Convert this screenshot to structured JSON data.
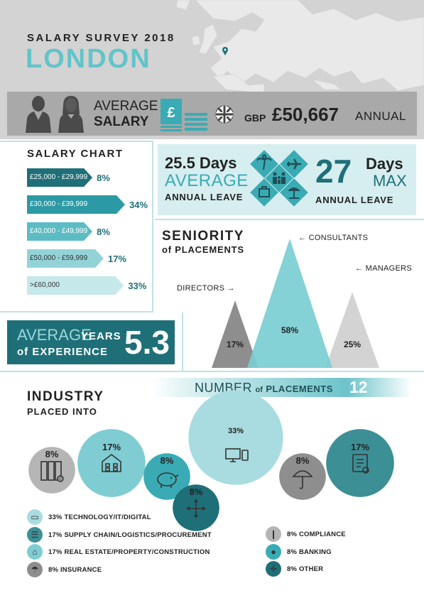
{
  "header": {
    "survey_title": "SALARY SURVEY 2018",
    "city": "LONDON",
    "average_label_1": "AVERAGE",
    "average_label_2": "SALARY",
    "currency": "GBP",
    "salary_value": "£50,667",
    "annual": "ANNUAL"
  },
  "salary_chart": {
    "title": "SALARY CHART",
    "bars": [
      {
        "range": "£25,000 - £29,999",
        "pct": "8%",
        "value": 8,
        "color": "#1f6f78"
      },
      {
        "range": "£30,000 - £39,999",
        "pct": "34%",
        "value": 34,
        "color": "#2c9aa4"
      },
      {
        "range": "£40,000 - £49,999",
        "pct": "8%",
        "value": 8,
        "color": "#5cbcc4"
      },
      {
        "range": "£50,000 - £59,999",
        "pct": "17%",
        "value": 17,
        "color": "#93d3d8"
      },
      {
        "range": ">£60,000",
        "pct": "33%",
        "value": 33,
        "color": "#c5e8eb"
      }
    ]
  },
  "leave": {
    "avg_days": "25.5 Days",
    "avg_label": "AVERAGE",
    "avg_sub": "ANNUAL LEAVE",
    "max_num": "27",
    "max_days": "Days",
    "max_label": "MAX",
    "max_sub": "ANNUAL LEAVE",
    "icons": [
      "palm-tree-icon",
      "airplane-icon",
      "suitcase-icon",
      "family-icon",
      "beach-umbrella-icon"
    ]
  },
  "seniority": {
    "title_1": "SENIORITY",
    "title_2": "of PLACEMENTS",
    "categories": [
      {
        "label": "DIRECTORS",
        "pct": "17%",
        "value": 17,
        "color": "#8e8e8e"
      },
      {
        "label": "CONSULTANTS",
        "pct": "58%",
        "value": 58,
        "color": "#79cdd3"
      },
      {
        "label": "MANAGERS",
        "pct": "25%",
        "value": 25,
        "color": "#d3d3d3"
      }
    ]
  },
  "experience": {
    "average": "AVERAGE",
    "years": "YEARS",
    "of_experience": "of EXPERIENCE",
    "value": "5.3"
  },
  "industry": {
    "title_1": "INDUSTRY",
    "title_2": "PLACED INTO",
    "number_label_1": "NUMBER",
    "number_label_2": "of",
    "number_label_3": "PLACEMENTS",
    "number_value": "12",
    "sectors": [
      {
        "name": "TECHNOLOGY/IT/DIGITAL",
        "pct": "33%",
        "value": 33,
        "color": "#a9dce0",
        "icon": "computer-icon"
      },
      {
        "name": "SUPPLY CHAIN/LOGISTICS/PROCUREMENT",
        "pct": "17%",
        "value": 17,
        "color": "#3d8f96",
        "icon": "clipboard-icon"
      },
      {
        "name": "REAL ESTATE/PROPERTY/CONSTRUCTION",
        "pct": "17%",
        "value": 17,
        "color": "#7fcdd3",
        "icon": "building-icon"
      },
      {
        "name": "INSURANCE",
        "pct": "8%",
        "value": 8,
        "color": "#8e8e8e",
        "icon": "umbrella-icon"
      },
      {
        "name": "COMPLIANCE",
        "pct": "8%",
        "value": 8,
        "color": "#b5b5b5",
        "icon": "binders-icon"
      },
      {
        "name": "BANKING",
        "pct": "8%",
        "value": 8,
        "color": "#3aabb4",
        "icon": "piggy-bank-icon"
      },
      {
        "name": "OTHER",
        "pct": "8%",
        "value": 8,
        "color": "#1f6f78",
        "icon": "arrows-icon"
      }
    ]
  },
  "legend": [
    {
      "text": "33% TECHNOLOGY/IT/DIGITAL",
      "color": "#a9dce0"
    },
    {
      "text": "17% SUPPLY CHAIN/LOGISTICS/PROCUREMENT",
      "color": "#3d8f96"
    },
    {
      "text": "17% REAL ESTATE/PROPERTY/CONSTRUCTION",
      "color": "#7fcdd3"
    },
    {
      "text": "8%  INSURANCE",
      "color": "#8e8e8e"
    },
    {
      "text": "8%  COMPLIANCE",
      "color": "#b5b5b5"
    },
    {
      "text": "8%  BANKING",
      "color": "#3aabb4"
    },
    {
      "text": "8%  OTHER",
      "color": "#1f6f78"
    }
  ],
  "chart_data": [
    {
      "type": "bar",
      "title": "SALARY CHART",
      "categories": [
        "£25,000 - £29,999",
        "£30,000 - £39,999",
        "£40,000 - £49,999",
        "£50,000 - £59,999",
        ">£60,000"
      ],
      "values": [
        8,
        34,
        8,
        17,
        33
      ]
    },
    {
      "type": "area",
      "title": "SENIORITY of PLACEMENTS",
      "categories": [
        "DIRECTORS",
        "CONSULTANTS",
        "MANAGERS"
      ],
      "values": [
        17,
        58,
        25
      ]
    },
    {
      "type": "pie",
      "title": "INDUSTRY PLACED INTO",
      "categories": [
        "TECHNOLOGY/IT/DIGITAL",
        "SUPPLY CHAIN/LOGISTICS/PROCUREMENT",
        "REAL ESTATE/PROPERTY/CONSTRUCTION",
        "INSURANCE",
        "COMPLIANCE",
        "BANKING",
        "OTHER"
      ],
      "values": [
        33,
        17,
        17,
        8,
        8,
        8,
        8
      ]
    }
  ]
}
